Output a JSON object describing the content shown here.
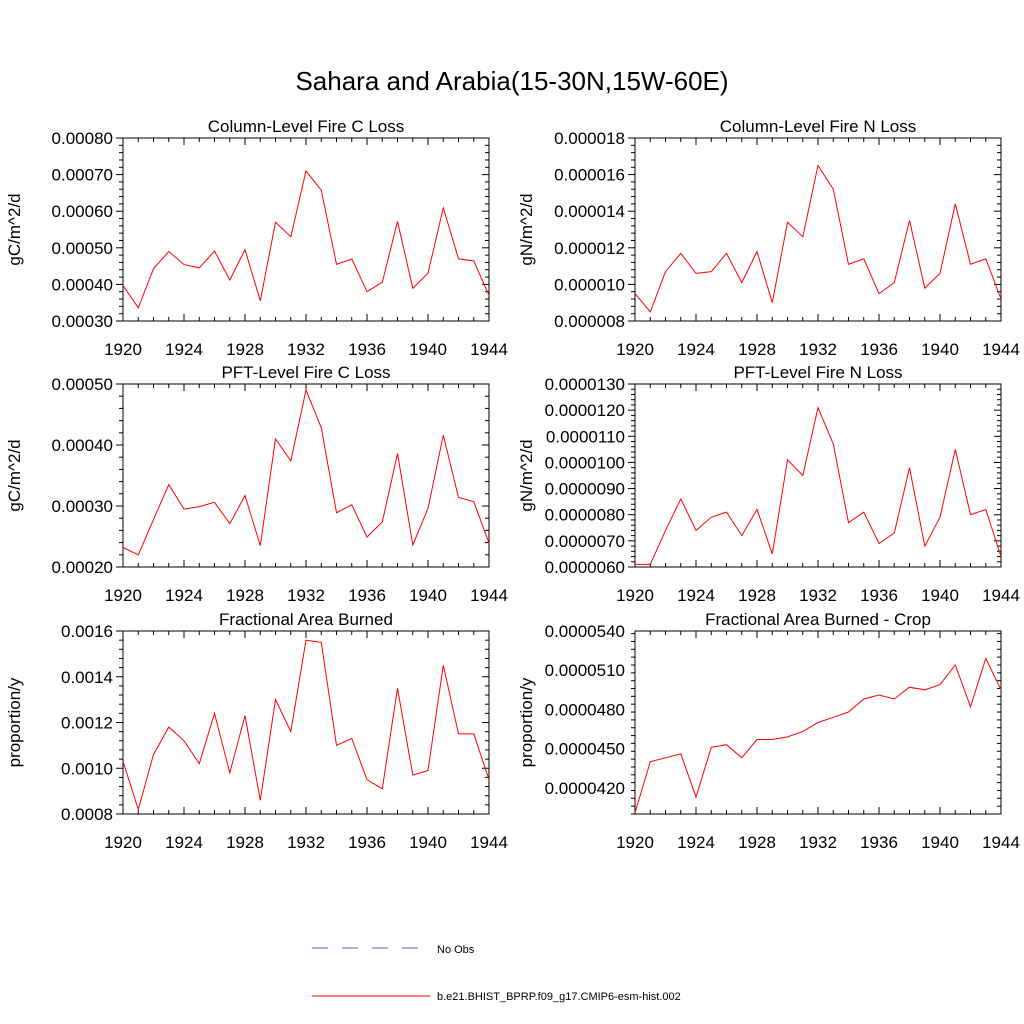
{
  "title": "Sahara and Arabia(15-30N,15W-60E)",
  "legend": {
    "obs_label": "No Obs",
    "model_label": "b.e21.BHIST_BPRP.f09_g17.CMIP6-esm-hist.002",
    "obs_color": "#5a5adc",
    "model_color": "#ff0000"
  },
  "chart_data": [
    {
      "type": "line",
      "title": "Column-Level Fire C Loss",
      "ylabel": "gC/m^2/d",
      "xlim": [
        1920,
        1944
      ],
      "ylim": [
        0.0003,
        0.0008
      ],
      "xticks": [
        "1920",
        "1924",
        "1928",
        "1932",
        "1936",
        "1940",
        "1944"
      ],
      "yticks": [
        "0.00030",
        "0.00040",
        "0.00050",
        "0.00060",
        "0.00070",
        "0.00080"
      ],
      "x": [
        1920,
        1921,
        1922,
        1923,
        1924,
        1925,
        1926,
        1927,
        1928,
        1929,
        1930,
        1931,
        1932,
        1933,
        1934,
        1935,
        1936,
        1937,
        1938,
        1939,
        1940,
        1941,
        1942,
        1943,
        1944
      ],
      "values": [
        0.000397,
        0.000336,
        0.000443,
        0.00049,
        0.000454,
        0.000445,
        0.000491,
        0.000412,
        0.000495,
        0.000355,
        0.00057,
        0.00053,
        0.00071,
        0.000657,
        0.000455,
        0.000469,
        0.00038,
        0.000406,
        0.000572,
        0.000389,
        0.000431,
        0.000609,
        0.00047,
        0.000464,
        0.00037
      ]
    },
    {
      "type": "line",
      "title": "Column-Level Fire N Loss",
      "ylabel": "gN/m^2/d",
      "xlim": [
        1920,
        1944
      ],
      "ylim": [
        8e-06,
        1.8e-05
      ],
      "xticks": [
        "1920",
        "1924",
        "1928",
        "1932",
        "1936",
        "1940",
        "1944"
      ],
      "yticks": [
        "0.000008",
        "0.000010",
        "0.000012",
        "0.000014",
        "0.000016",
        "0.000018"
      ],
      "x": [
        1920,
        1921,
        1922,
        1923,
        1924,
        1925,
        1926,
        1927,
        1928,
        1929,
        1930,
        1931,
        1932,
        1933,
        1934,
        1935,
        1936,
        1937,
        1938,
        1939,
        1940,
        1941,
        1942,
        1943,
        1944
      ],
      "values": [
        9.5e-06,
        8.5e-06,
        1.07e-05,
        1.17e-05,
        1.06e-05,
        1.07e-05,
        1.17e-05,
        1.01e-05,
        1.18e-05,
        9e-06,
        1.34e-05,
        1.26e-05,
        1.65e-05,
        1.52e-05,
        1.11e-05,
        1.14e-05,
        9.5e-06,
        1.01e-05,
        1.35e-05,
        9.8e-06,
        1.06e-05,
        1.44e-05,
        1.11e-05,
        1.14e-05,
        9.2e-06
      ]
    },
    {
      "type": "line",
      "title": "PFT-Level Fire C Loss",
      "ylabel": "gC/m^2/d",
      "xlim": [
        1920,
        1944
      ],
      "ylim": [
        0.0002,
        0.0005
      ],
      "xticks": [
        "1920",
        "1924",
        "1928",
        "1932",
        "1936",
        "1940",
        "1944"
      ],
      "yticks": [
        "0.00020",
        "0.00030",
        "0.00040",
        "0.00050"
      ],
      "x": [
        1920,
        1921,
        1922,
        1923,
        1924,
        1925,
        1926,
        1927,
        1928,
        1929,
        1930,
        1931,
        1932,
        1933,
        1934,
        1935,
        1936,
        1937,
        1938,
        1939,
        1940,
        1941,
        1942,
        1943,
        1944
      ],
      "values": [
        0.000232,
        0.00022,
        0.000278,
        0.000335,
        0.000295,
        0.000299,
        0.000306,
        0.000271,
        0.000317,
        0.000235,
        0.00041,
        0.000374,
        0.00049,
        0.000428,
        0.000289,
        0.000302,
        0.000249,
        0.000274,
        0.000386,
        0.000236,
        0.000296,
        0.000416,
        0.000314,
        0.000307,
        0.000239
      ]
    },
    {
      "type": "line",
      "title": "PFT-Level Fire N Loss",
      "ylabel": "gN/m^2/d",
      "xlim": [
        1920,
        1944
      ],
      "ylim": [
        6e-06,
        1.3e-05
      ],
      "xticks": [
        "1920",
        "1924",
        "1928",
        "1932",
        "1936",
        "1940",
        "1944"
      ],
      "yticks": [
        "0.0000060",
        "0.0000070",
        "0.0000080",
        "0.0000090",
        "0.0000100",
        "0.0000110",
        "0.0000120",
        "0.0000130"
      ],
      "x": [
        1920,
        1921,
        1922,
        1923,
        1924,
        1925,
        1926,
        1927,
        1928,
        1929,
        1930,
        1931,
        1932,
        1933,
        1934,
        1935,
        1936,
        1937,
        1938,
        1939,
        1940,
        1941,
        1942,
        1943,
        1944
      ],
      "values": [
        6.1e-06,
        6.1e-06,
        7.4e-06,
        8.6e-06,
        7.4e-06,
        7.9e-06,
        8.1e-06,
        7.2e-06,
        8.2e-06,
        6.5e-06,
        1.01e-05,
        9.5e-06,
        1.21e-05,
        1.07e-05,
        7.7e-06,
        8.1e-06,
        6.9e-06,
        7.3e-06,
        9.8e-06,
        6.8e-06,
        7.9e-06,
        1.05e-05,
        8e-06,
        8.2e-06,
        6.4e-06
      ]
    },
    {
      "type": "line",
      "title": "Fractional Area Burned",
      "ylabel": "proportion/y",
      "xlim": [
        1920,
        1944
      ],
      "ylim": [
        0.0008,
        0.0016
      ],
      "xticks": [
        "1920",
        "1924",
        "1928",
        "1932",
        "1936",
        "1940",
        "1944"
      ],
      "yticks": [
        "0.0008",
        "0.0010",
        "0.0012",
        "0.0014",
        "0.0016"
      ],
      "x": [
        1920,
        1921,
        1922,
        1923,
        1924,
        1925,
        1926,
        1927,
        1928,
        1929,
        1930,
        1931,
        1932,
        1933,
        1934,
        1935,
        1936,
        1937,
        1938,
        1939,
        1940,
        1941,
        1942,
        1943,
        1944
      ],
      "values": [
        0.00103,
        0.00082,
        0.00106,
        0.00118,
        0.00112,
        0.00102,
        0.00124,
        0.00098,
        0.00123,
        0.00086,
        0.0013,
        0.00116,
        0.00156,
        0.00155,
        0.0011,
        0.00113,
        0.00095,
        0.00091,
        0.00135,
        0.00097,
        0.00099,
        0.00145,
        0.00115,
        0.00115,
        0.00095
      ]
    },
    {
      "type": "line",
      "title": "Fractional Area Burned - Crop",
      "ylabel": "proportion/y",
      "xlim": [
        1920,
        1944
      ],
      "ylim": [
        4e-05,
        5.4e-05
      ],
      "xticks": [
        "1920",
        "1924",
        "1928",
        "1932",
        "1936",
        "1940",
        "1944"
      ],
      "yticks": [
        "0.0000420",
        "0.0000450",
        "0.0000480",
        "0.0000510",
        "0.0000540"
      ],
      "x": [
        1920,
        1921,
        1922,
        1923,
        1924,
        1925,
        1926,
        1927,
        1928,
        1929,
        1930,
        1931,
        1932,
        1933,
        1934,
        1935,
        1936,
        1937,
        1938,
        1939,
        1940,
        1941,
        1942,
        1943,
        1944
      ],
      "values": [
        4.01e-05,
        4.4e-05,
        4.43e-05,
        4.46e-05,
        4.13e-05,
        4.51e-05,
        4.53e-05,
        4.43e-05,
        4.57e-05,
        4.57e-05,
        4.59e-05,
        4.63e-05,
        4.7e-05,
        4.74e-05,
        4.78e-05,
        4.88e-05,
        4.91e-05,
        4.88e-05,
        4.97e-05,
        4.95e-05,
        4.99e-05,
        5.14e-05,
        4.82e-05,
        5.19e-05,
        4.95e-05
      ]
    }
  ]
}
